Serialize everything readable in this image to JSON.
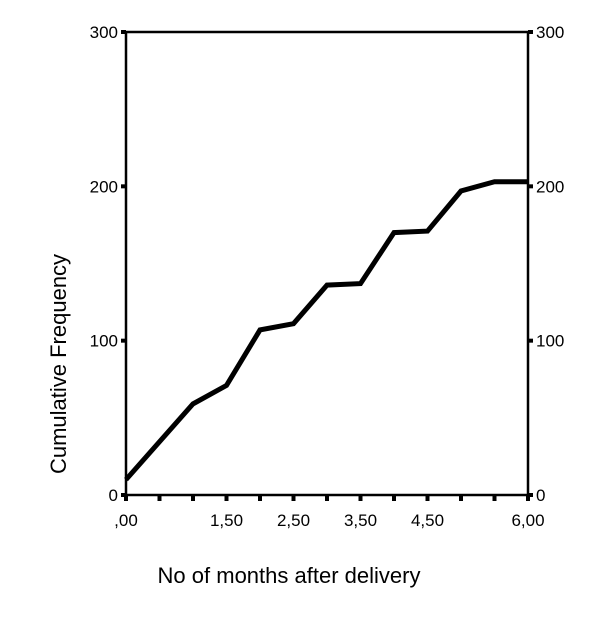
{
  "chart_data": {
    "type": "line",
    "xlabel": "No of months after delivery",
    "ylabel": "Cumulative Frequency",
    "x_ticks": [
      ",00",
      "1,50",
      "2,50",
      "3,50",
      "4,50",
      "6,00"
    ],
    "y_ticks": [
      "0",
      "100",
      "200",
      "300"
    ],
    "xlim": [
      0,
      6
    ],
    "ylim": [
      0,
      300
    ],
    "series": [
      {
        "x": [
          0,
          1,
          1.5,
          2,
          2.5,
          3,
          3.5,
          4,
          4.5,
          5,
          5.5,
          6
        ],
        "y": [
          10,
          59,
          71,
          107,
          111,
          136,
          137,
          170,
          171,
          197,
          203,
          203
        ]
      }
    ],
    "grid": false,
    "legend": "none",
    "line_color": "#000000"
  }
}
